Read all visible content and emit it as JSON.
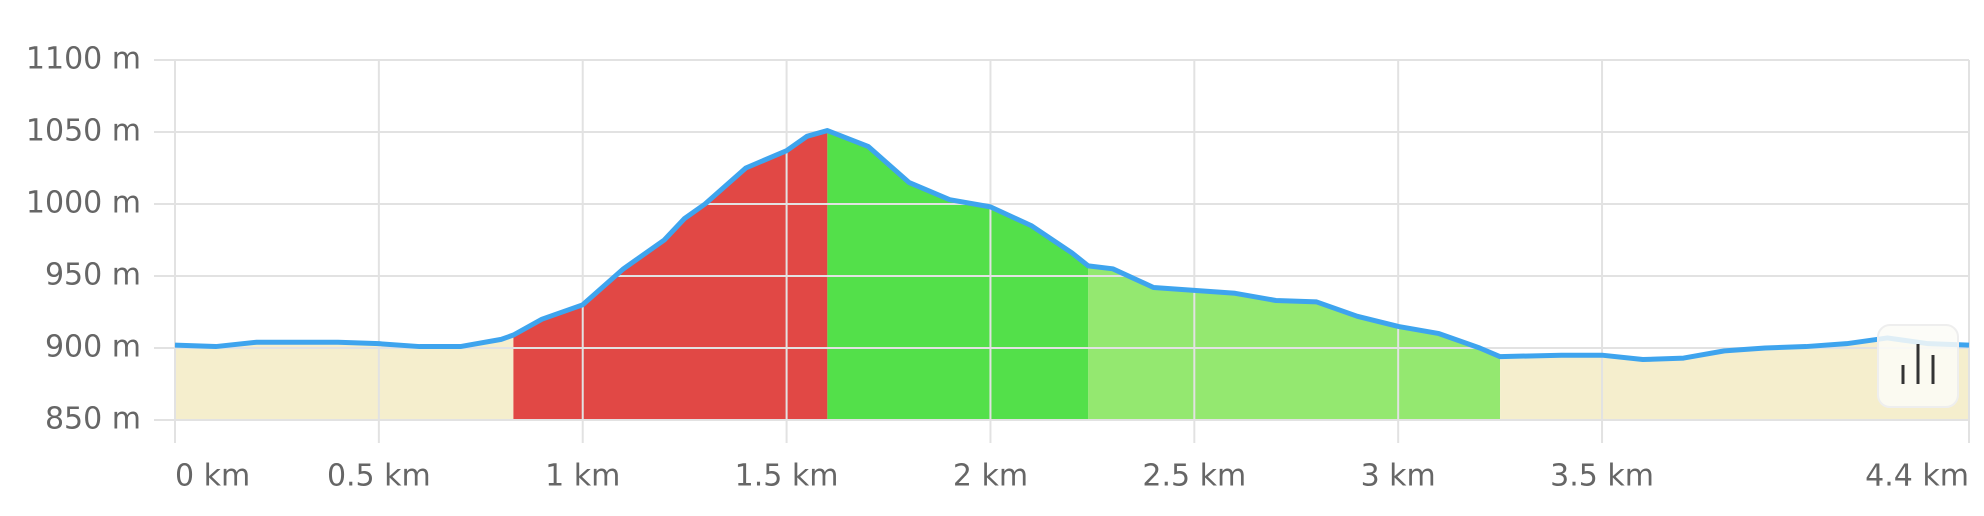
{
  "chart_data": {
    "type": "area",
    "x": [
      0,
      0.1,
      0.2,
      0.3,
      0.4,
      0.5,
      0.6,
      0.7,
      0.8,
      0.83,
      0.9,
      1.0,
      1.1,
      1.2,
      1.25,
      1.3,
      1.4,
      1.5,
      1.55,
      1.6,
      1.7,
      1.8,
      1.9,
      2.0,
      2.1,
      2.2,
      2.24,
      2.3,
      2.4,
      2.5,
      2.6,
      2.7,
      2.8,
      2.9,
      3.0,
      3.1,
      3.2,
      3.25,
      3.4,
      3.5,
      3.6,
      3.7,
      3.8,
      3.9,
      4.0,
      4.1,
      4.2,
      4.3,
      4.4
    ],
    "series": [
      {
        "color": "#3ea4ee",
        "values": [
          902,
          901,
          904,
          904,
          904,
          903,
          901,
          901,
          906,
          909,
          920,
          930,
          955,
          975,
          990,
          1000,
          1025,
          1037,
          1047,
          1051,
          1040,
          1015,
          1003,
          998,
          985,
          966,
          957,
          955,
          942,
          940,
          938,
          933,
          932,
          922,
          915,
          910,
          900,
          894,
          895,
          895,
          892,
          893,
          898,
          900,
          901,
          903,
          907,
          903,
          902
        ]
      }
    ],
    "segments": [
      {
        "from": 0,
        "to": 0.83,
        "color": "#f5eecd"
      },
      {
        "from": 0.83,
        "to": 1.6,
        "color": "#e14845"
      },
      {
        "from": 1.6,
        "to": 2.24,
        "color": "#53e04a"
      },
      {
        "from": 2.24,
        "to": 3.25,
        "color": "#94e870"
      },
      {
        "from": 3.25,
        "to": 4.4,
        "color": "#f5eecd"
      }
    ],
    "xlim": [
      0,
      4.4
    ],
    "xticks": [
      {
        "value": 0,
        "label": "0 km"
      },
      {
        "value": 0.5,
        "label": "0.5 km"
      },
      {
        "value": 1,
        "label": "1 km"
      },
      {
        "value": 1.5,
        "label": "1.5 km"
      },
      {
        "value": 2,
        "label": "2 km"
      },
      {
        "value": 2.5,
        "label": "2.5 km"
      },
      {
        "value": 3,
        "label": "3 km"
      },
      {
        "value": 3.5,
        "label": "3.5 km"
      },
      {
        "value": 4.4,
        "label": "4.4 km"
      }
    ],
    "ylim": [
      850,
      1100
    ],
    "yticks": [
      {
        "value": 850,
        "label": "850 m"
      },
      {
        "value": 900,
        "label": "900 m"
      },
      {
        "value": 950,
        "label": "950 m"
      },
      {
        "value": 1000,
        "label": "1000 m"
      },
      {
        "value": 1050,
        "label": "1050 m"
      },
      {
        "value": 1100,
        "label": "1100 m"
      }
    ],
    "grid": true
  }
}
